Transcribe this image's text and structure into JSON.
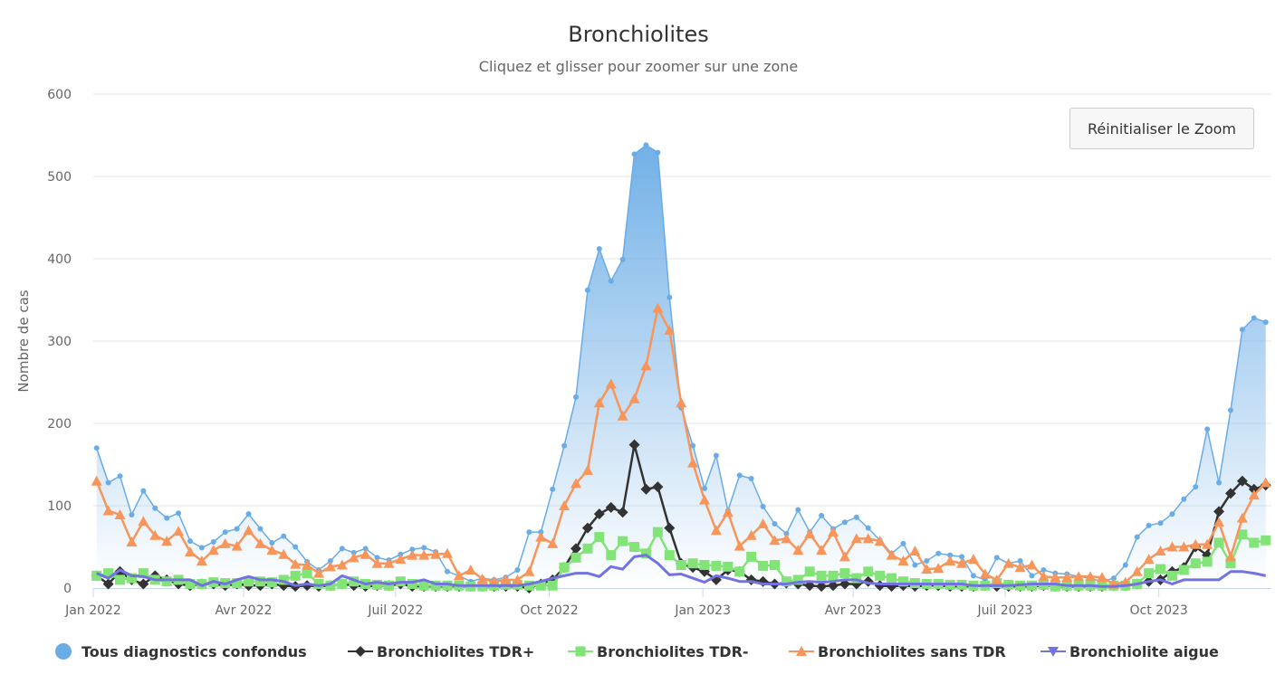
{
  "chart_data": {
    "type": "line",
    "title": "Bronchiolites",
    "subtitle": "Cliquez et glisser pour zoomer sur une zone",
    "ylabel": "Nombre de cas",
    "xlabel": "",
    "ylim": [
      0,
      600
    ],
    "yticks": [
      "0",
      "100",
      "200",
      "300",
      "400",
      "500",
      "600"
    ],
    "xticks": [
      {
        "date": "2022-01-01",
        "label": "Jan 2022"
      },
      {
        "date": "2022-04-01",
        "label": "Avr 2022"
      },
      {
        "date": "2022-07-01",
        "label": "Juil 2022"
      },
      {
        "date": "2022-10-01",
        "label": "Oct 2022"
      },
      {
        "date": "2023-01-01",
        "label": "Jan 2023"
      },
      {
        "date": "2023-04-01",
        "label": "Avr 2023"
      },
      {
        "date": "2023-07-01",
        "label": "Juil 2023"
      },
      {
        "date": "2023-10-01",
        "label": "Oct 2023"
      }
    ],
    "grid": true,
    "legend_position": "bottom",
    "x": [
      "2022-01-03",
      "2022-01-10",
      "2022-01-17",
      "2022-01-24",
      "2022-01-31",
      "2022-02-07",
      "2022-02-14",
      "2022-02-21",
      "2022-02-28",
      "2022-03-07",
      "2022-03-14",
      "2022-03-21",
      "2022-03-28",
      "2022-04-04",
      "2022-04-11",
      "2022-04-18",
      "2022-04-25",
      "2022-05-02",
      "2022-05-09",
      "2022-05-16",
      "2022-05-23",
      "2022-05-30",
      "2022-06-06",
      "2022-06-13",
      "2022-06-20",
      "2022-06-27",
      "2022-07-04",
      "2022-07-11",
      "2022-07-18",
      "2022-07-25",
      "2022-08-01",
      "2022-08-08",
      "2022-08-15",
      "2022-08-22",
      "2022-08-29",
      "2022-09-05",
      "2022-09-12",
      "2022-09-19",
      "2022-09-26",
      "2022-10-03",
      "2022-10-10",
      "2022-10-17",
      "2022-10-24",
      "2022-10-31",
      "2022-11-07",
      "2022-11-14",
      "2022-11-21",
      "2022-11-28",
      "2022-12-05",
      "2022-12-12",
      "2022-12-19",
      "2022-12-26",
      "2023-01-02",
      "2023-01-09",
      "2023-01-16",
      "2023-01-23",
      "2023-01-30",
      "2023-02-06",
      "2023-02-13",
      "2023-02-20",
      "2023-02-27",
      "2023-03-06",
      "2023-03-13",
      "2023-03-20",
      "2023-03-27",
      "2023-04-03",
      "2023-04-10",
      "2023-04-17",
      "2023-04-24",
      "2023-05-01",
      "2023-05-08",
      "2023-05-15",
      "2023-05-22",
      "2023-05-29",
      "2023-06-05",
      "2023-06-12",
      "2023-06-19",
      "2023-06-26",
      "2023-07-03",
      "2023-07-10",
      "2023-07-17",
      "2023-07-24",
      "2023-07-31",
      "2023-08-07",
      "2023-08-14",
      "2023-08-21",
      "2023-08-28",
      "2023-09-04",
      "2023-09-11",
      "2023-09-18",
      "2023-09-25",
      "2023-10-02",
      "2023-10-09",
      "2023-10-16",
      "2023-10-23",
      "2023-10-30",
      "2023-11-06",
      "2023-11-13",
      "2023-11-20",
      "2023-11-27",
      "2023-12-04"
    ],
    "series": [
      {
        "name": "Tous diagnostics confondus",
        "color": "#6aace6",
        "marker": "circle",
        "area": true,
        "values": [
          170,
          128,
          136,
          89,
          118,
          97,
          85,
          91,
          57,
          49,
          56,
          68,
          72,
          90,
          72,
          55,
          63,
          50,
          32,
          22,
          33,
          48,
          43,
          48,
          37,
          34,
          41,
          47,
          49,
          44,
          20,
          15,
          8,
          12,
          10,
          13,
          22,
          68,
          68,
          120,
          173,
          232,
          362,
          412,
          373,
          399,
          527,
          538,
          529,
          353,
          219,
          173,
          121,
          161,
          94,
          137,
          133,
          99,
          78,
          66,
          95,
          68,
          88,
          72,
          80,
          86,
          73,
          58,
          42,
          54,
          28,
          33,
          42,
          40,
          38,
          15,
          10,
          37,
          30,
          33,
          15,
          22,
          18,
          17,
          14,
          12,
          8,
          12,
          28,
          62,
          76,
          79,
          90,
          108,
          123,
          193,
          128,
          216,
          314,
          328,
          323
        ]
      },
      {
        "name": "Bronchiolites TDR+",
        "color": "#333333",
        "marker": "diamond",
        "values": [
          15,
          5,
          20,
          10,
          5,
          15,
          10,
          5,
          3,
          5,
          5,
          3,
          5,
          3,
          3,
          5,
          3,
          2,
          3,
          2,
          3,
          5,
          3,
          2,
          3,
          3,
          5,
          2,
          2,
          2,
          2,
          2,
          2,
          2,
          2,
          2,
          2,
          0,
          5,
          10,
          25,
          48,
          73,
          90,
          98,
          92,
          174,
          120,
          123,
          73,
          30,
          25,
          20,
          10,
          22,
          20,
          10,
          8,
          5,
          6,
          5,
          3,
          2,
          3,
          5,
          5,
          8,
          3,
          2,
          3,
          2,
          3,
          3,
          2,
          2,
          2,
          3,
          2,
          2,
          2,
          2,
          3,
          2,
          2,
          2,
          2,
          2,
          3,
          3,
          5,
          8,
          10,
          20,
          25,
          50,
          40,
          93,
          115,
          130,
          120,
          125
        ]
      },
      {
        "name": "Bronchiolites TDR-",
        "color": "#82e477",
        "marker": "square",
        "values": [
          15,
          18,
          10,
          12,
          18,
          10,
          8,
          10,
          5,
          5,
          7,
          6,
          6,
          8,
          8,
          7,
          10,
          15,
          18,
          5,
          3,
          5,
          8,
          5,
          4,
          3,
          8,
          5,
          3,
          3,
          3,
          3,
          2,
          2,
          3,
          4,
          4,
          3,
          3,
          3,
          25,
          37,
          48,
          62,
          40,
          57,
          50,
          42,
          68,
          40,
          28,
          30,
          28,
          27,
          26,
          20,
          38,
          27,
          28,
          8,
          10,
          20,
          15,
          15,
          18,
          12,
          20,
          15,
          12,
          8,
          6,
          5,
          5,
          4,
          4,
          3,
          3,
          6,
          4,
          3,
          3,
          4,
          2,
          3,
          3,
          3,
          3,
          3,
          3,
          5,
          18,
          23,
          15,
          22,
          30,
          32,
          55,
          30,
          65,
          55,
          58
        ]
      },
      {
        "name": "Bronchiolites sans TDR",
        "color": "#f7955a",
        "marker": "triangle",
        "values": [
          130,
          94,
          89,
          56,
          81,
          64,
          57,
          69,
          44,
          33,
          46,
          54,
          51,
          70,
          54,
          46,
          41,
          29,
          28,
          18,
          26,
          28,
          37,
          41,
          30,
          30,
          35,
          40,
          40,
          41,
          42,
          15,
          22,
          11,
          8,
          10,
          10,
          20,
          62,
          54,
          100,
          127,
          143,
          225,
          248,
          209,
          230,
          270,
          340,
          313,
          225,
          152,
          107,
          70,
          92,
          51,
          64,
          78,
          58,
          60,
          46,
          66,
          46,
          68,
          38,
          60,
          60,
          57,
          40,
          33,
          45,
          23,
          24,
          33,
          30,
          35,
          17,
          10,
          30,
          25,
          28,
          14,
          13,
          13,
          14,
          14,
          13,
          5,
          7,
          20,
          35,
          45,
          50,
          50,
          53,
          53,
          80,
          38,
          85,
          113,
          128
        ]
      },
      {
        "name": "Bronchiolite aigue",
        "color": "#7273e0",
        "marker": "triangle-down",
        "markers_on_plot": false,
        "values": [
          18,
          12,
          22,
          15,
          14,
          10,
          10,
          10,
          10,
          3,
          8,
          5,
          10,
          14,
          10,
          10,
          8,
          3,
          5,
          3,
          5,
          15,
          10,
          5,
          7,
          5,
          7,
          7,
          10,
          5,
          5,
          3,
          3,
          3,
          3,
          3,
          3,
          5,
          8,
          12,
          15,
          18,
          18,
          14,
          26,
          23,
          38,
          40,
          30,
          16,
          17,
          12,
          7,
          15,
          12,
          8,
          8,
          5,
          5,
          5,
          7,
          8,
          7,
          8,
          10,
          10,
          6,
          5,
          5,
          5,
          5,
          5,
          5,
          5,
          5,
          3,
          3,
          3,
          3,
          4,
          5,
          5,
          5,
          3,
          3,
          3,
          2,
          2,
          3,
          5,
          8,
          10,
          5,
          10,
          10,
          10,
          10,
          20,
          20,
          18,
          15
        ]
      }
    ]
  },
  "controls": {
    "reset_zoom_label": "Réinitialiser le Zoom"
  }
}
